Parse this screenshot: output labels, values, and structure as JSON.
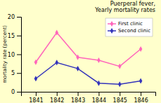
{
  "chart_data": {
    "type": "line",
    "title": "Puerperal fever,\nYearly mortality rates",
    "ylabel": "mortality rate (percent)",
    "x": [
      1841,
      1842,
      1843,
      1844,
      1845,
      1846
    ],
    "series": [
      {
        "name": "First clinic",
        "color": "#ff66bb",
        "marker": "diamond",
        "values": [
          7.9,
          15.8,
          9.2,
          8.4,
          6.8,
          11.4
        ]
      },
      {
        "name": "Second clinic",
        "color": "#3333bb",
        "marker": "diamond",
        "values": [
          3.5,
          7.8,
          6.2,
          2.3,
          2.0,
          2.9
        ]
      }
    ],
    "xlim": [
      1840.3,
      1846.7
    ],
    "xticks": [
      1841,
      1842,
      1843,
      1844,
      1845,
      1846
    ],
    "ylim": [
      0,
      20
    ],
    "yticks": [
      0,
      5,
      10,
      15,
      20
    ],
    "grid": false,
    "legend": "upper right"
  }
}
